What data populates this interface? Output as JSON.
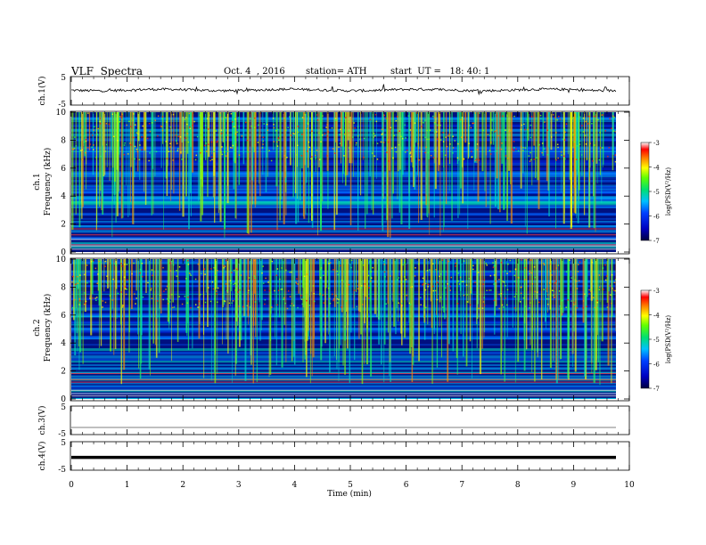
{
  "header": {
    "title": "VLF  Spectra",
    "date": "Oct. 4  , 2016",
    "station": "station= ATH",
    "start": "start  UT =   18: 40: 1"
  },
  "chart_data": [
    {
      "type": "line",
      "panel": "ch1-waveform",
      "ylabel": "ch.1(V)",
      "ylim": [
        -5,
        5
      ],
      "yticks": [
        "5",
        "-5"
      ],
      "xlim": [
        0,
        10
      ],
      "baseline": 0.3
    },
    {
      "type": "heatmap",
      "panel": "ch1-spectrogram",
      "ylabel_channel": "ch.1",
      "ylabel": "Frequency  (kHz)",
      "ylim": [
        0,
        10
      ],
      "yticks": [
        "0",
        "2",
        "4",
        "6",
        "8",
        "10"
      ],
      "xlim": [
        0,
        9.83
      ],
      "colorbar": {
        "label": "log(PSD(V²/Hz)",
        "range": [
          -7,
          -3
        ],
        "ticks": [
          "-3",
          "-4",
          "-5",
          "-6",
          "-7"
        ]
      }
    },
    {
      "type": "heatmap",
      "panel": "ch2-spectrogram",
      "ylabel_channel": "ch.2",
      "ylabel": "Frequency  (kHz)",
      "ylim": [
        0,
        10
      ],
      "yticks": [
        "0",
        "2",
        "4",
        "6",
        "8",
        "10"
      ],
      "xlim": [
        0,
        9.83
      ],
      "colorbar": {
        "label": "log(PSD(V²/Hz)",
        "range": [
          -7,
          -3
        ],
        "ticks": [
          "-3",
          "-4",
          "-5",
          "-6",
          "-7"
        ]
      }
    },
    {
      "type": "line",
      "panel": "ch3-waveform",
      "ylabel": "ch.3(V)",
      "ylim": [
        -5,
        5
      ],
      "yticks": [
        "5",
        "-5"
      ],
      "baseline": -2.5
    },
    {
      "type": "line",
      "panel": "ch4-waveform",
      "ylabel": "ch.4(V)",
      "ylim": [
        -5,
        5
      ],
      "yticks": [
        "5",
        "-5"
      ],
      "baseline": -0.5
    }
  ],
  "xaxis": {
    "label": "Time  (min)",
    "ticks": [
      "0",
      "1",
      "2",
      "3",
      "4",
      "5",
      "6",
      "7",
      "8",
      "9",
      "10"
    ],
    "range": [
      0,
      10
    ]
  }
}
